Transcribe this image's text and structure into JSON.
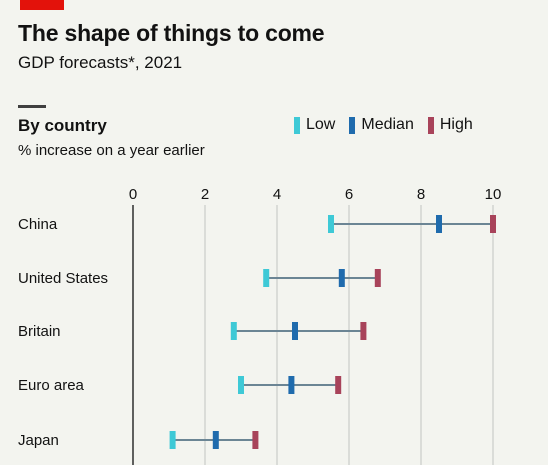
{
  "header": {
    "title": "The shape of things to come",
    "subtitle": "GDP forecasts*, 2021"
  },
  "section": {
    "title": "By country",
    "subtitle": "% increase on a year earlier"
  },
  "colors": {
    "low": "#3ec9d6",
    "median": "#1f6bad",
    "high": "#a8435a",
    "range_line": "#6b8594",
    "grid": "#c9ccc8",
    "zero_axis": "#3a3a3a",
    "brand": "#e3120b"
  },
  "chart_data": {
    "type": "dot-range",
    "xlim": [
      0,
      10
    ],
    "xticks": [
      "0",
      "2",
      "4",
      "6",
      "8",
      "10"
    ],
    "grid": true,
    "legend_position": "top-right",
    "series": [
      {
        "name": "Low",
        "key": "low"
      },
      {
        "name": "Median",
        "key": "median"
      },
      {
        "name": "High",
        "key": "high"
      }
    ],
    "categories": [
      "China",
      "United States",
      "Britain",
      "Euro area",
      "Japan"
    ],
    "values": {
      "low": [
        5.5,
        3.7,
        2.8,
        3.0,
        1.1
      ],
      "median": [
        8.5,
        5.8,
        4.5,
        4.4,
        2.3
      ],
      "high": [
        10.0,
        6.8,
        6.4,
        5.7,
        3.4
      ]
    }
  }
}
